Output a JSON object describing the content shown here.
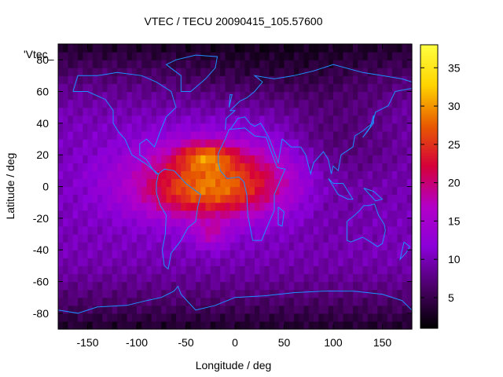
{
  "chart_data": {
    "type": "heatmap",
    "title": "VTEC / TECU 20090415_105.57600",
    "key_label": "'Vtec_",
    "xlabel": "Longitude / deg",
    "ylabel": "Latitude / deg",
    "xlim": [
      -180,
      180
    ],
    "ylim": [
      -90,
      90
    ],
    "x_ticks": [
      -150,
      -100,
      -50,
      0,
      50,
      100,
      150
    ],
    "y_ticks": [
      -80,
      -60,
      -40,
      -20,
      0,
      20,
      40,
      60,
      80
    ],
    "colorbar": {
      "range": [
        1,
        38
      ],
      "ticks": [
        5,
        10,
        15,
        20,
        25,
        30,
        35
      ],
      "colors": [
        "#000000",
        "#4a0066",
        "#8a00d8",
        "#b300c8",
        "#d5003a",
        "#e85a00",
        "#ffd400",
        "#ffff40"
      ]
    },
    "features": [
      {
        "lon": -20,
        "lat": 5,
        "sigma_lon": 60,
        "sigma_lat": 16,
        "amp": 16
      },
      {
        "lon": -35,
        "lat": -8,
        "sigma_lon": 45,
        "sigma_lat": 10,
        "amp": 5
      },
      {
        "lon": -30,
        "lat": 20,
        "sigma_lon": 20,
        "sigma_lat": 6,
        "amp": 9
      },
      {
        "lon": -25,
        "lat": -30,
        "sigma_lon": 12,
        "sigma_lat": 6,
        "amp": 6
      },
      {
        "lon": 90,
        "lat": 20,
        "sigma_lon": 30,
        "sigma_lat": 30,
        "amp": -3
      },
      {
        "lon": 140,
        "lat": 30,
        "sigma_lon": 30,
        "sigma_lat": 20,
        "amp": -2
      },
      {
        "lon": 30,
        "lat": 70,
        "sigma_lon": 60,
        "sigma_lat": 15,
        "amp": -2
      }
    ],
    "background_value": 10
  }
}
